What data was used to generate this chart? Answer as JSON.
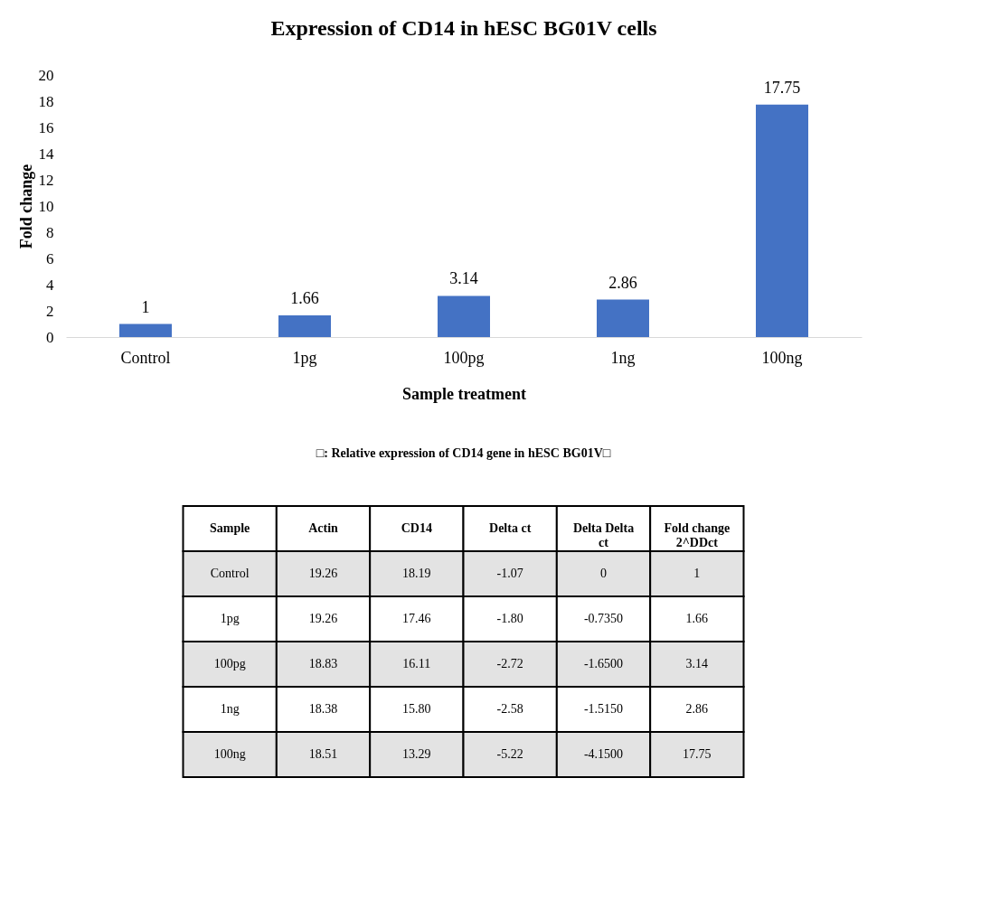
{
  "chart_data": [
    {
      "type": "bar",
      "title": "Expression  of  CD14 in hESC BG01V cells",
      "xlabel": "Sample treatment",
      "ylabel": "Fold change",
      "categories": [
        "Control",
        "1pg",
        "100pg",
        "1ng",
        "100ng"
      ],
      "values": [
        1,
        1.66,
        3.14,
        2.86,
        17.75
      ],
      "color": "#4472c4",
      "ylim": [
        0,
        20
      ],
      "yticks": [
        0,
        2,
        4,
        6,
        8,
        10,
        12,
        14,
        16,
        18,
        20
      ],
      "grid": false,
      "data_labels": true
    },
    {
      "type": "other",
      "title": "□: Relative expression of CD14 gene in hESC BG01V□",
      "annotations": [
        "Sample",
        "Actin",
        "CD14",
        "Delta ct",
        "Delta Delta ct",
        "Fold change 2^DDct",
        "Control",
        "19.26",
        "18.19",
        "-1.07",
        "0",
        "1",
        "1pg",
        "19.26",
        "17.46",
        "-1.80",
        "-0.7350",
        "1.66",
        "100pg",
        "18.83",
        "16.11",
        "-2.72",
        "-1.6500",
        "3.14",
        "1ng",
        "18.38",
        "15.80",
        "-2.58",
        "-1.5150",
        "2.86",
        "100ng",
        "18.51",
        "13.29",
        "-5.22",
        "-4.1500",
        "17.75"
      ]
    }
  ]
}
